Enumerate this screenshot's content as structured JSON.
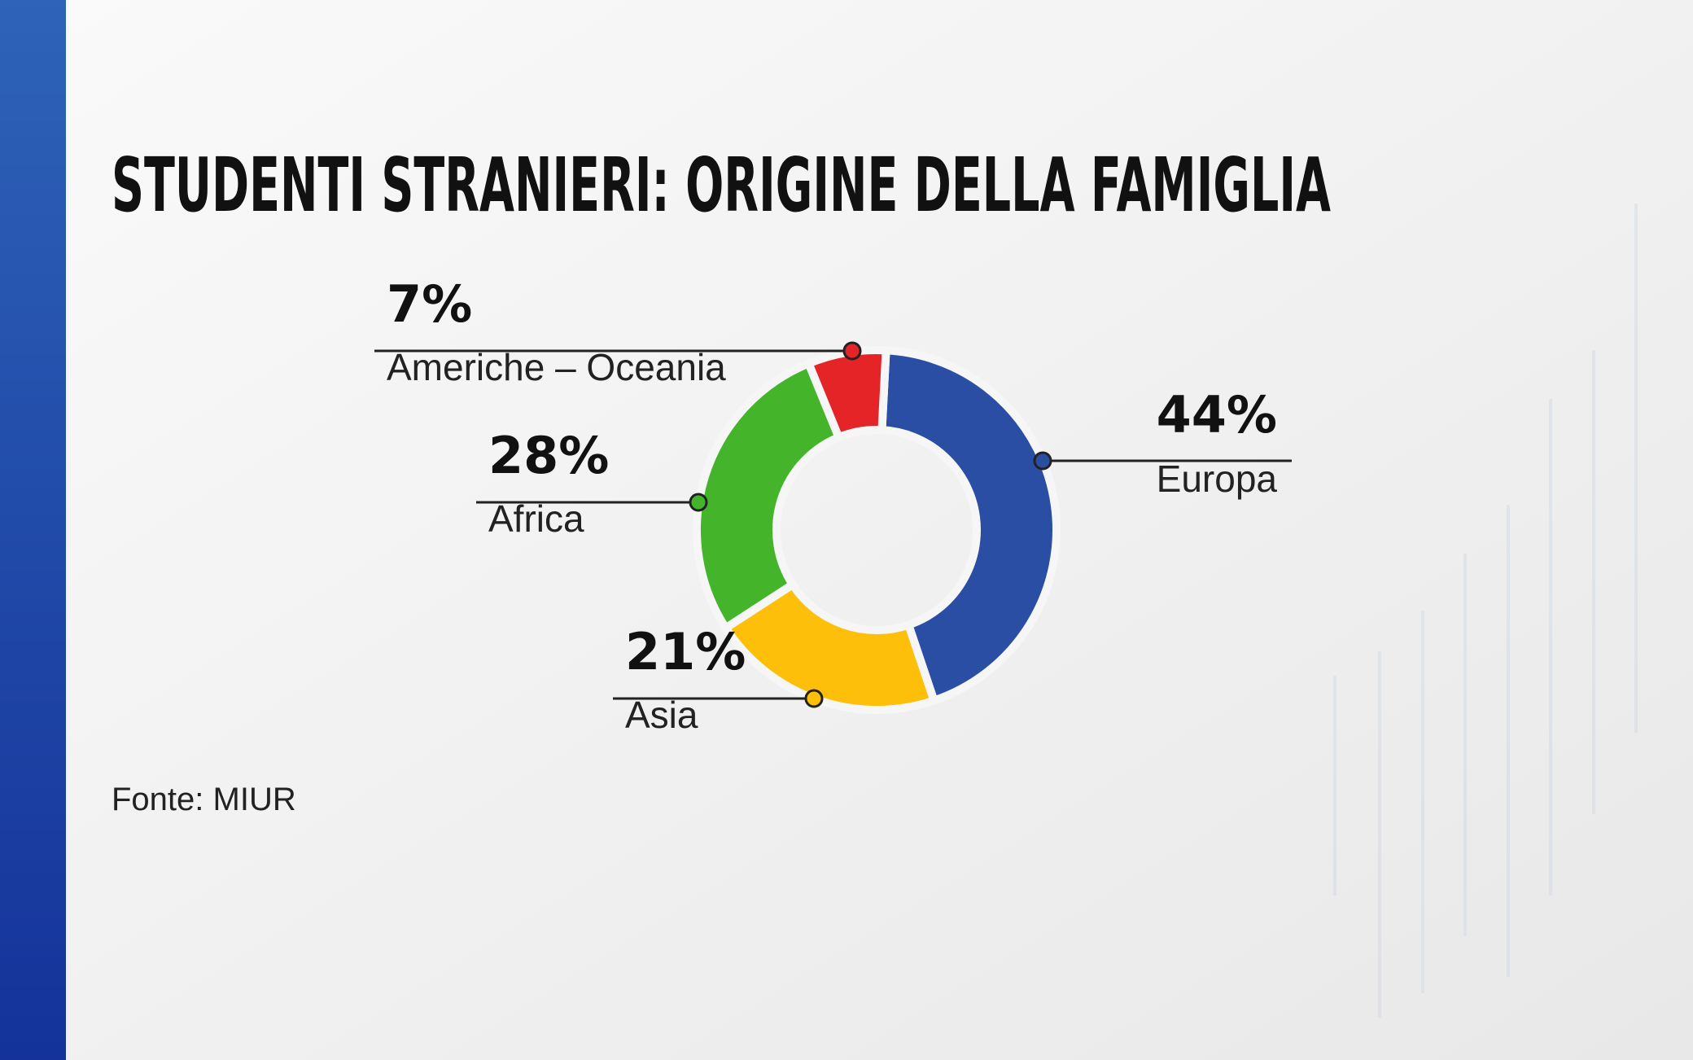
{
  "chart_data": {
    "type": "donut",
    "title": "STUDENTI STRANIERI: ORIGINE DELLA FAMIGLIA",
    "categories": [
      "Europa",
      "Asia",
      "Africa",
      "Americhe – Oceania"
    ],
    "values": [
      44,
      21,
      28,
      7
    ],
    "value_labels": [
      "44%",
      "21%",
      "28%",
      "7%"
    ],
    "colors": [
      "#2a4ea3",
      "#fdbf0a",
      "#44b52a",
      "#e52427"
    ],
    "source": "Fonte: MIUR"
  }
}
